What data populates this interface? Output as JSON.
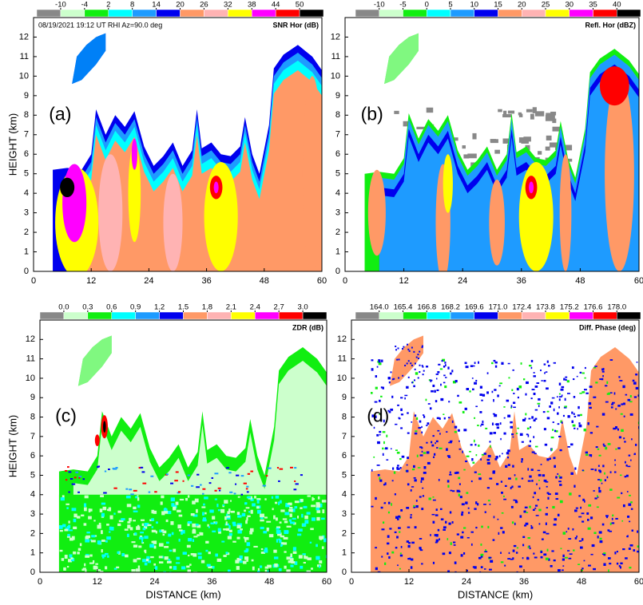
{
  "chart_data": [
    {
      "type": "rhi",
      "panel_label": "(a)",
      "info": "08/19/2021  19:12 UT  RHI   Az=90.0 deg",
      "field_label": "SNR Hor (dB)",
      "colorbar": {
        "colors": [
          "#888888",
          "#ccffcc",
          "#11ee11",
          "#00ffff",
          "#1e9bff",
          "#0000ee",
          "#ff9966",
          "#ffb3b3",
          "#ffff00",
          "#ff00ff",
          "#ff0000",
          "#000000"
        ],
        "ticks": [
          -10,
          -4,
          2,
          8,
          14,
          20,
          26,
          32,
          38,
          44,
          50
        ]
      },
      "xlim": [
        0,
        60
      ],
      "xticks": [
        0,
        12,
        24,
        36,
        48,
        60
      ],
      "ylim": [
        0,
        13
      ],
      "yticks": [
        0,
        1,
        2,
        3,
        4,
        5,
        6,
        7,
        8,
        9,
        10,
        11,
        12
      ],
      "ylabel": "HEIGHT (km)"
    },
    {
      "type": "rhi",
      "panel_label": "(b)",
      "field_label": "Refl. Hor (dBZ)",
      "colorbar": {
        "colors": [
          "#888888",
          "#ccffcc",
          "#11ee11",
          "#00ffff",
          "#1e9bff",
          "#0000ee",
          "#ff9966",
          "#ffb3b3",
          "#ffff00",
          "#ff00ff",
          "#ff0000",
          "#000000"
        ],
        "ticks": [
          -10,
          -5,
          0,
          5,
          10,
          15,
          20,
          25,
          30,
          35,
          40
        ]
      },
      "xlim": [
        0,
        60
      ],
      "xticks": [
        0,
        12,
        24,
        36,
        48,
        60
      ],
      "ylim": [
        0,
        13
      ],
      "yticks": [
        0,
        1,
        2,
        3,
        4,
        5,
        6,
        7,
        8,
        9,
        10,
        11,
        12
      ]
    },
    {
      "type": "rhi",
      "panel_label": "(c)",
      "field_label": "ZDR  (dB)",
      "colorbar": {
        "colors": [
          "#888888",
          "#ccffcc",
          "#11ee11",
          "#00ffff",
          "#1e9bff",
          "#0000ee",
          "#ff9966",
          "#ffb3b3",
          "#ffff00",
          "#ff00ff",
          "#ff0000",
          "#000000"
        ],
        "ticks": [
          {
            "value": 0,
            "label": "0.0"
          },
          0.3,
          0.6,
          0.9,
          1.2,
          1.5,
          1.8,
          2.1,
          2.4,
          2.7,
          {
            "value": 3,
            "label": "3.0"
          }
        ]
      },
      "xlim": [
        0,
        60
      ],
      "xticks": [
        0,
        12,
        24,
        36,
        48,
        60
      ],
      "ylim": [
        0,
        13
      ],
      "yticks": [
        0,
        1,
        2,
        3,
        4,
        5,
        6,
        7,
        8,
        9,
        10,
        11,
        12
      ],
      "ylabel": "HEIGHT (km)",
      "xlabel": "DISTANCE (km)"
    },
    {
      "type": "rhi",
      "panel_label": "(d)",
      "field_label": "Diff. Phase  (deg)",
      "colorbar": {
        "colors": [
          "#888888",
          "#ccffcc",
          "#11ee11",
          "#00ffff",
          "#1e9bff",
          "#0000ee",
          "#ff9966",
          "#ffb3b3",
          "#ffff00",
          "#ff00ff",
          "#ff0000",
          "#000000"
        ],
        "ticks": [
          {
            "value": 164,
            "label": "164.0"
          },
          165.4,
          166.8,
          168.2,
          169.6,
          {
            "value": 171,
            "label": "171.0"
          },
          172.4,
          173.8,
          175.2,
          176.6,
          {
            "value": 178,
            "label": "178.0"
          }
        ]
      },
      "xlim": [
        0,
        60
      ],
      "xticks": [
        0,
        12,
        24,
        36,
        48,
        60
      ],
      "ylim": [
        0,
        13
      ],
      "yticks": [
        0,
        1,
        2,
        3,
        4,
        5,
        6,
        7,
        8,
        9,
        10,
        11,
        12
      ],
      "xlabel": "DISTANCE (km)"
    }
  ]
}
